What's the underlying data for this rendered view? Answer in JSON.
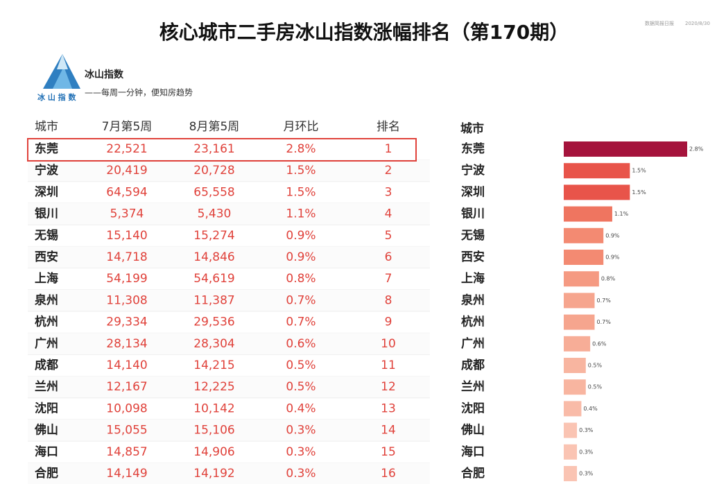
{
  "header": {
    "title": "核心城市二手房冰山指数涨幅排名（第170期）",
    "source": "数据简报日报",
    "date": "2020/8/30",
    "brand": "冰山指数",
    "slogan": "——每周一分钟，便知房趋势",
    "logo_text": "冰 山 指 数"
  },
  "table": {
    "header": [
      "城市",
      "7月第5周",
      "8月第5周",
      "月环比",
      "排名"
    ],
    "rows": [
      [
        "东莞",
        "22,521",
        "23,161",
        "2.8%",
        "1"
      ],
      [
        "宁波",
        "20,419",
        "20,728",
        "1.5%",
        "2"
      ],
      [
        "深圳",
        "64,594",
        "65,558",
        "1.5%",
        "3"
      ],
      [
        "银川",
        "5,374",
        "5,430",
        "1.1%",
        "4"
      ],
      [
        "无锡",
        "15,140",
        "15,274",
        "0.9%",
        "5"
      ],
      [
        "西安",
        "14,718",
        "14,846",
        "0.9%",
        "6"
      ],
      [
        "上海",
        "54,199",
        "54,619",
        "0.8%",
        "7"
      ],
      [
        "泉州",
        "11,308",
        "11,387",
        "0.7%",
        "8"
      ],
      [
        "杭州",
        "29,334",
        "29,536",
        "0.7%",
        "9"
      ],
      [
        "广州",
        "28,134",
        "28,304",
        "0.6%",
        "10"
      ],
      [
        "成都",
        "14,140",
        "14,215",
        "0.5%",
        "11"
      ],
      [
        "兰州",
        "12,167",
        "12,225",
        "0.5%",
        "12"
      ],
      [
        "沈阳",
        "10,098",
        "10,142",
        "0.4%",
        "13"
      ],
      [
        "佛山",
        "15,055",
        "15,106",
        "0.3%",
        "14"
      ],
      [
        "海口",
        "14,857",
        "14,906",
        "0.3%",
        "15"
      ],
      [
        "合肥",
        "14,149",
        "14,192",
        "0.3%",
        "16"
      ]
    ]
  },
  "chart_data": {
    "type": "bar",
    "orientation": "horizontal",
    "category_label": "城市",
    "categories": [
      "东莞",
      "宁波",
      "深圳",
      "银川",
      "无锡",
      "西安",
      "上海",
      "泉州",
      "杭州",
      "广州",
      "成都",
      "兰州",
      "沈阳",
      "佛山",
      "海口",
      "合肥"
    ],
    "values": [
      2.8,
      1.5,
      1.5,
      1.1,
      0.9,
      0.9,
      0.8,
      0.7,
      0.7,
      0.6,
      0.5,
      0.5,
      0.4,
      0.3,
      0.3,
      0.3
    ],
    "value_labels": [
      "2.8%",
      "1.5%",
      "1.5%",
      "1.1%",
      "0.9%",
      "0.9%",
      "0.8%",
      "0.7%",
      "0.7%",
      "0.6%",
      "0.5%",
      "0.5%",
      "0.4%",
      "0.3%",
      "0.3%",
      "0.3%"
    ],
    "colors": [
      "#a5133c",
      "#e8544a",
      "#e8544a",
      "#ef7560",
      "#f38a72",
      "#f38a72",
      "#f59a82",
      "#f6a58e",
      "#f6a58e",
      "#f7ad97",
      "#f8b5a0",
      "#f8b5a0",
      "#f9bba8",
      "#fac4b3",
      "#fac4b3",
      "#fac4b3"
    ]
  }
}
